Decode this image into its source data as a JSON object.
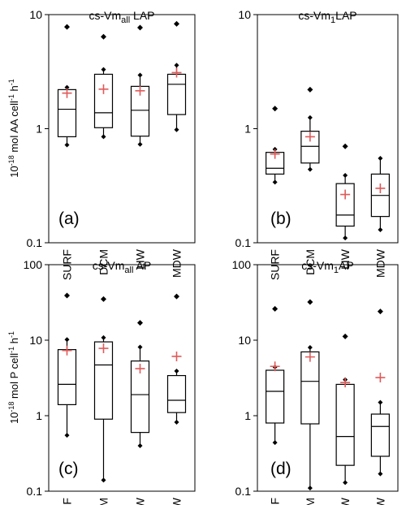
{
  "ylabels": [
    {
      "base": "10",
      "exp": "-18",
      "text": " mol AA cell",
      "exp2": "-1",
      "text2": " h",
      "exp3": "-1"
    },
    {
      "base": "10",
      "exp": "-18",
      "text": " mol P cell",
      "exp2": "-1",
      "text2": " h",
      "exp3": "-1"
    }
  ],
  "chart_data": [
    {
      "type": "box",
      "panel_label": "(a)",
      "title_parts": {
        "main": "cs-Vm",
        "sub": "all",
        "suffix": " LAP"
      },
      "yscale": "log",
      "ylim": [
        0.1,
        10
      ],
      "yticks": [
        "0.1",
        "1",
        "10"
      ],
      "categories": [
        "SURF",
        "DCM",
        "LIW",
        "MDW"
      ],
      "boxes": [
        {
          "min": 0.72,
          "q1": 0.85,
          "median": 1.48,
          "q3": 2.2,
          "max": 2.3,
          "mean": 2.05,
          "outliers": [
            7.8
          ]
        },
        {
          "min": 0.85,
          "q1": 1.02,
          "median": 1.38,
          "q3": 3.0,
          "max": 3.3,
          "mean": 2.22,
          "outliers": [
            6.4
          ]
        },
        {
          "min": 0.73,
          "q1": 0.86,
          "median": 1.45,
          "q3": 2.35,
          "max": 2.95,
          "mean": 2.15,
          "outliers": [
            7.7
          ]
        },
        {
          "min": 0.98,
          "q1": 1.33,
          "median": 2.45,
          "q3": 3.0,
          "max": 3.6,
          "mean": 3.1,
          "outliers": [
            8.3
          ]
        }
      ]
    },
    {
      "type": "box",
      "panel_label": "(b)",
      "title_parts": {
        "main": "cs-Vm",
        "sub": "1",
        "suffix": "LAP"
      },
      "yscale": "log",
      "ylim": [
        0.1,
        10
      ],
      "yticks": [
        "0.1",
        "1",
        "10"
      ],
      "categories": [
        "SURF",
        "DCM",
        "LIW",
        "MDW"
      ],
      "boxes": [
        {
          "min": 0.34,
          "q1": 0.4,
          "median": 0.45,
          "q3": 0.62,
          "max": 0.66,
          "mean": 0.6,
          "outliers": [
            1.5
          ]
        },
        {
          "min": 0.44,
          "q1": 0.5,
          "median": 0.7,
          "q3": 0.95,
          "max": 1.25,
          "mean": 0.85,
          "outliers": [
            2.2
          ]
        },
        {
          "min": 0.11,
          "q1": 0.14,
          "median": 0.175,
          "q3": 0.33,
          "max": 0.39,
          "mean": 0.265,
          "outliers": [
            0.7
          ]
        },
        {
          "min": 0.13,
          "q1": 0.17,
          "median": 0.26,
          "q3": 0.4,
          "max": 0.55,
          "mean": 0.3,
          "outliers": []
        }
      ]
    },
    {
      "type": "box",
      "panel_label": "(c)",
      "title_parts": {
        "main": "cs-Vm",
        "sub": "all",
        "suffix": " AP"
      },
      "yscale": "log",
      "ylim": [
        0.1,
        100
      ],
      "yticks": [
        "0.1",
        "1",
        "10",
        "100"
      ],
      "categories": [
        "SURF",
        "DCM",
        "LIW",
        "MDW"
      ],
      "boxes": [
        {
          "min": 0.55,
          "q1": 1.4,
          "median": 2.6,
          "q3": 7.5,
          "max": 10.2,
          "mean": 7.3,
          "outliers": [
            39
          ]
        },
        {
          "min": 0.14,
          "q1": 0.9,
          "median": 4.7,
          "q3": 9.5,
          "max": 10.8,
          "mean": 7.8,
          "outliers": [
            35
          ]
        },
        {
          "min": 0.4,
          "q1": 0.6,
          "median": 1.9,
          "q3": 5.3,
          "max": 8.1,
          "mean": 4.2,
          "outliers": [
            17
          ]
        },
        {
          "min": 0.82,
          "q1": 1.1,
          "median": 1.6,
          "q3": 3.4,
          "max": 3.9,
          "mean": 6.1,
          "outliers": [
            38
          ]
        }
      ]
    },
    {
      "type": "box",
      "panel_label": "(d)",
      "title_parts": {
        "main": "cs-Vm",
        "sub": "1",
        "suffix": "AP"
      },
      "yscale": "log",
      "ylim": [
        0.1,
        100
      ],
      "yticks": [
        "0.1",
        "1",
        "10",
        "100"
      ],
      "categories": [
        "SUF",
        "DCM",
        "LIW",
        "MDW"
      ],
      "boxes": [
        {
          "min": 0.44,
          "q1": 0.8,
          "median": 2.1,
          "q3": 4.0,
          "max": 4.4,
          "mean": 4.5,
          "outliers": [
            26
          ]
        },
        {
          "min": 0.11,
          "q1": 0.78,
          "median": 2.85,
          "q3": 7.0,
          "max": 8.0,
          "mean": 6.0,
          "outliers": [
            32
          ]
        },
        {
          "min": 0.13,
          "q1": 0.22,
          "median": 0.53,
          "q3": 2.6,
          "max": 3.0,
          "mean": 2.75,
          "outliers": [
            11.2
          ]
        },
        {
          "min": 0.17,
          "q1": 0.29,
          "median": 0.72,
          "q3": 1.05,
          "max": 1.5,
          "mean": 3.2,
          "outliers": [
            24
          ]
        }
      ]
    }
  ],
  "colors": {
    "mean_marker": "#e05a5a",
    "box": "#000000"
  }
}
